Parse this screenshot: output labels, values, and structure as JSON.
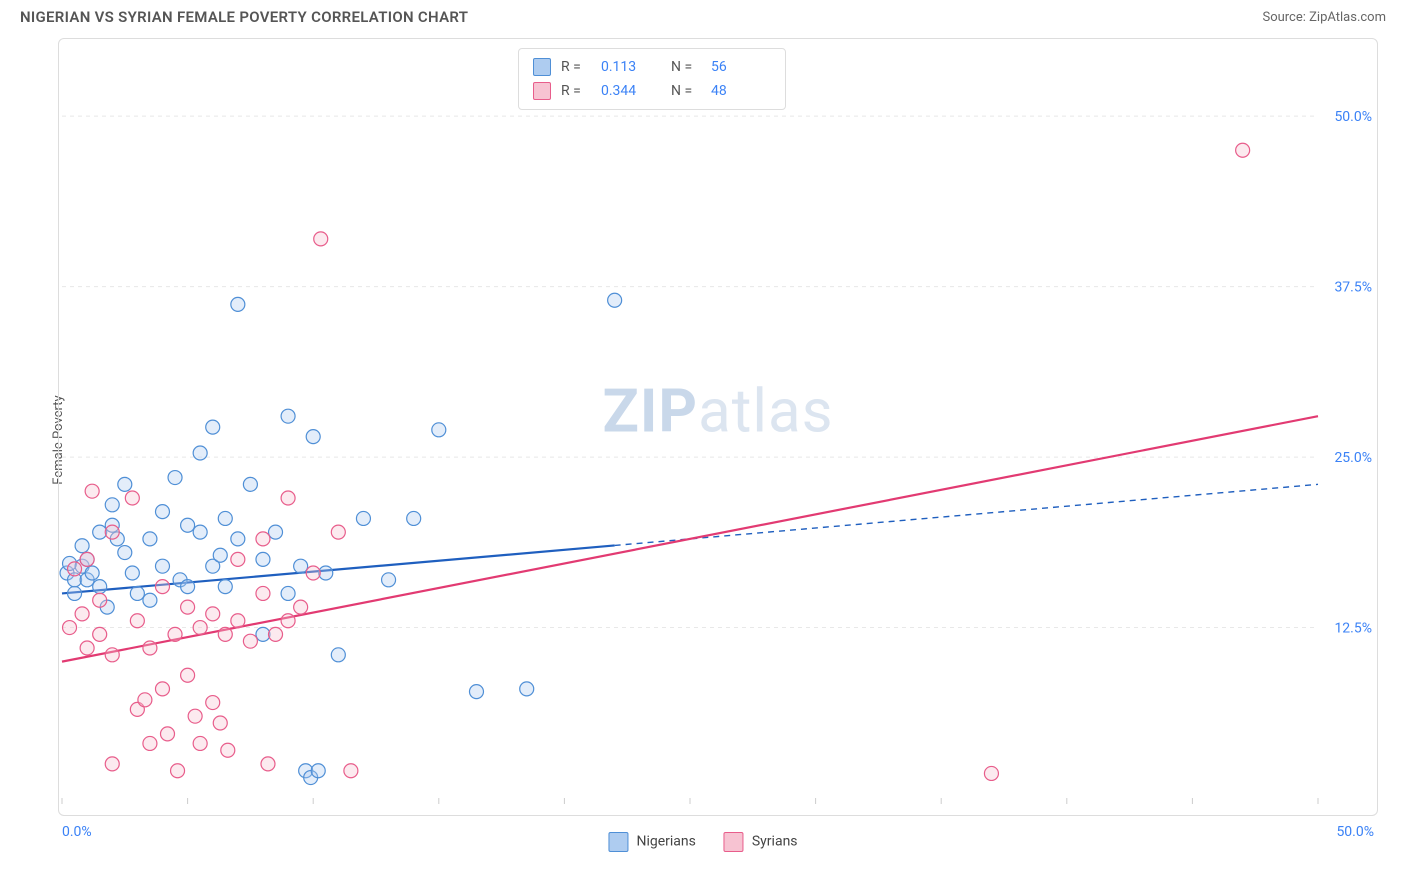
{
  "title": "NIGERIAN VS SYRIAN FEMALE POVERTY CORRELATION CHART",
  "source": "Source: ZipAtlas.com",
  "ylabel": "Female Poverty",
  "watermark_zip": "ZIP",
  "watermark_atlas": "atlas",
  "chart": {
    "type": "scatter",
    "background_color": "#ffffff",
    "border_color": "#dddddd",
    "grid_color": "#e8e8e8",
    "grid_dash": "4,4",
    "xlim": [
      0,
      50
    ],
    "ylim": [
      0,
      55
    ],
    "x_ticks": [
      0,
      5,
      10,
      15,
      20,
      25,
      30,
      35,
      40,
      45,
      50
    ],
    "x_tick_labels": [
      "0.0%",
      "",
      "",
      "",
      "",
      "",
      "",
      "",
      "",
      "",
      "50.0%"
    ],
    "y_gridlines": [
      12.5,
      25.0,
      37.5,
      50.0
    ],
    "y_gridline_labels": [
      "12.5%",
      "25.0%",
      "37.5%",
      "50.0%"
    ],
    "x_label_color": "#3b82f6",
    "y_label_color": "#3b82f6",
    "marker_radius": 7,
    "marker_fill_opacity": 0.35,
    "marker_stroke_width": 1.2,
    "trend_line_width": 2.2
  },
  "series": [
    {
      "name": "Nigerians",
      "color_fill": "#aeccf0",
      "color_stroke": "#4f8fd6",
      "trend_color": "#1f5fbf",
      "trend_dash_after_x": 22,
      "R": "0.113",
      "N": "56",
      "trend": {
        "x1": 0,
        "y1": 15.0,
        "x2": 50,
        "y2": 23.0
      },
      "points": [
        [
          0.2,
          16.5
        ],
        [
          0.3,
          17.2
        ],
        [
          0.5,
          15.0
        ],
        [
          0.5,
          16.0
        ],
        [
          0.8,
          18.5
        ],
        [
          0.8,
          17.0
        ],
        [
          1.0,
          16.0
        ],
        [
          1.0,
          17.5
        ],
        [
          1.2,
          16.5
        ],
        [
          1.5,
          19.5
        ],
        [
          1.5,
          15.5
        ],
        [
          1.8,
          14.0
        ],
        [
          2.0,
          20.0
        ],
        [
          2.0,
          21.5
        ],
        [
          2.2,
          19.0
        ],
        [
          2.5,
          23.0
        ],
        [
          2.5,
          18.0
        ],
        [
          2.8,
          16.5
        ],
        [
          3.0,
          15.0
        ],
        [
          3.5,
          19.0
        ],
        [
          3.5,
          14.5
        ],
        [
          4.0,
          21.0
        ],
        [
          4.0,
          17.0
        ],
        [
          4.5,
          23.5
        ],
        [
          4.7,
          16.0
        ],
        [
          5.0,
          20.0
        ],
        [
          5.0,
          15.5
        ],
        [
          5.5,
          19.5
        ],
        [
          5.5,
          25.3
        ],
        [
          6.0,
          27.2
        ],
        [
          6.0,
          17.0
        ],
        [
          6.3,
          17.8
        ],
        [
          6.5,
          20.5
        ],
        [
          6.5,
          15.5
        ],
        [
          7.0,
          36.2
        ],
        [
          7.0,
          19.0
        ],
        [
          7.5,
          23.0
        ],
        [
          8.0,
          17.5
        ],
        [
          8.0,
          12.0
        ],
        [
          8.5,
          19.5
        ],
        [
          9.0,
          28.0
        ],
        [
          9.0,
          15.0
        ],
        [
          9.5,
          17.0
        ],
        [
          9.7,
          2.0
        ],
        [
          9.9,
          1.5
        ],
        [
          10.0,
          26.5
        ],
        [
          10.2,
          2.0
        ],
        [
          10.5,
          16.5
        ],
        [
          11.0,
          10.5
        ],
        [
          12.0,
          20.5
        ],
        [
          13.0,
          16.0
        ],
        [
          14.0,
          20.5
        ],
        [
          15.0,
          27.0
        ],
        [
          16.5,
          7.8
        ],
        [
          18.5,
          8.0
        ],
        [
          22.0,
          36.5
        ]
      ]
    },
    {
      "name": "Syrians",
      "color_fill": "#f7c3d2",
      "color_stroke": "#e85d8b",
      "trend_color": "#e23a72",
      "trend_dash_after_x": 50,
      "R": "0.344",
      "N": "48",
      "trend": {
        "x1": 0,
        "y1": 10.0,
        "x2": 50,
        "y2": 28.0
      },
      "points": [
        [
          0.3,
          12.5
        ],
        [
          0.5,
          16.8
        ],
        [
          0.8,
          13.5
        ],
        [
          1.0,
          17.5
        ],
        [
          1.0,
          11.0
        ],
        [
          1.2,
          22.5
        ],
        [
          1.5,
          14.5
        ],
        [
          1.5,
          12.0
        ],
        [
          2.0,
          19.5
        ],
        [
          2.0,
          10.5
        ],
        [
          2.0,
          2.5
        ],
        [
          2.8,
          22.0
        ],
        [
          3.0,
          13.0
        ],
        [
          3.0,
          6.5
        ],
        [
          3.3,
          7.2
        ],
        [
          3.5,
          11.0
        ],
        [
          3.5,
          4.0
        ],
        [
          4.0,
          15.5
        ],
        [
          4.0,
          8.0
        ],
        [
          4.2,
          4.7
        ],
        [
          4.5,
          12.0
        ],
        [
          4.6,
          2.0
        ],
        [
          5.0,
          14.0
        ],
        [
          5.0,
          9.0
        ],
        [
          5.3,
          6.0
        ],
        [
          5.5,
          12.5
        ],
        [
          5.5,
          4.0
        ],
        [
          6.0,
          13.5
        ],
        [
          6.0,
          7.0
        ],
        [
          6.3,
          5.5
        ],
        [
          6.5,
          12.0
        ],
        [
          6.6,
          3.5
        ],
        [
          7.0,
          17.5
        ],
        [
          7.0,
          13.0
        ],
        [
          7.5,
          11.5
        ],
        [
          8.0,
          15.0
        ],
        [
          8.0,
          19.0
        ],
        [
          8.2,
          2.5
        ],
        [
          8.5,
          12.0
        ],
        [
          9.0,
          13.0
        ],
        [
          9.0,
          22.0
        ],
        [
          9.5,
          14.0
        ],
        [
          10.0,
          16.5
        ],
        [
          10.3,
          41.0
        ],
        [
          11.0,
          19.5
        ],
        [
          11.5,
          2.0
        ],
        [
          37.0,
          1.8
        ],
        [
          47.0,
          47.5
        ]
      ]
    }
  ],
  "legend_bottom": [
    {
      "label": "Nigerians",
      "fill": "#aeccf0",
      "stroke": "#4f8fd6"
    },
    {
      "label": "Syrians",
      "fill": "#f7c3d2",
      "stroke": "#e85d8b"
    }
  ]
}
